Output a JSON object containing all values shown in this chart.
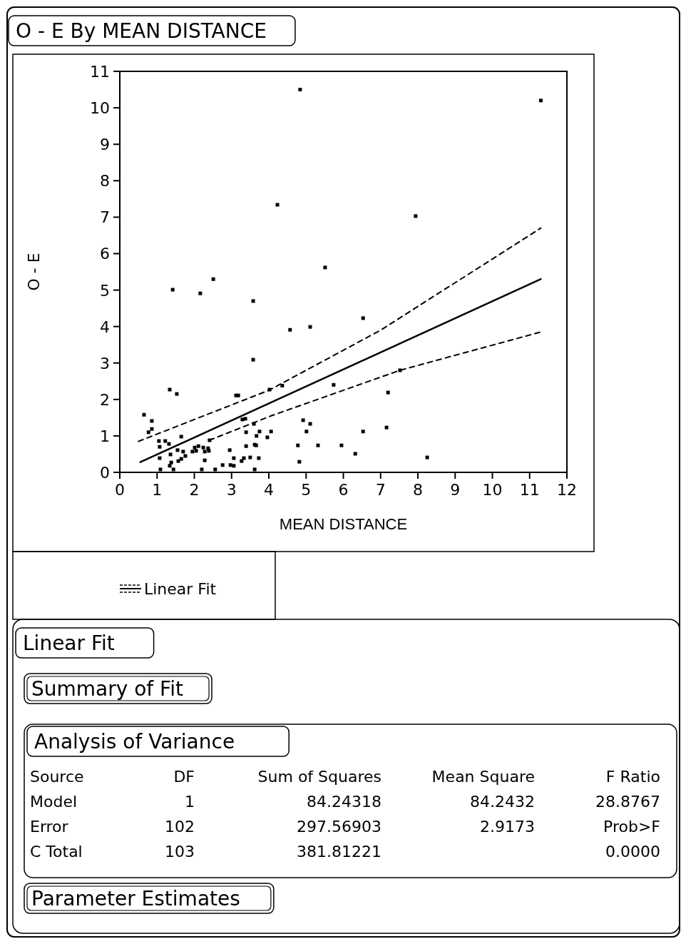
{
  "chart_data": [
    {
      "type": "scatter",
      "title": "O - E By MEAN DISTANCE",
      "xlabel": "MEAN DISTANCE",
      "ylabel": "O - E",
      "xlim": [
        0,
        12
      ],
      "ylim": [
        0,
        11
      ],
      "xticks": [
        0,
        1,
        2,
        3,
        4,
        5,
        6,
        7,
        8,
        9,
        10,
        11,
        12
      ],
      "yticks": [
        0,
        1,
        2,
        3,
        4,
        5,
        6,
        7,
        8,
        9,
        10,
        11
      ],
      "grid": false,
      "legend": "bottom",
      "series": [
        {
          "type": "scatter",
          "marker": "square",
          "color": "#000000",
          "x": [
            4.84,
            11.3,
            4.23,
            7.94,
            5.51,
            1.42,
            2.16,
            2.51,
            3.58,
            4.57,
            5.11,
            6.53,
            3.58,
            4.36,
            5.74,
            7.52,
            7.2,
            4.92,
            5.11,
            5.01,
            4.78,
            5.32,
            5.95,
            4.82,
            6.32,
            6.53,
            7.16,
            8.25,
            4.06,
            0.65,
            0.86,
            0.86,
            0.77,
            1.34,
            1.53,
            1.65,
            1.05,
            1.22,
            1.07,
            1.32,
            1.36,
            1.07,
            1.38,
            1.34,
            1.55,
            1.7,
            1.76,
            1.57,
            1.65,
            1.09,
            1.44,
            2.01,
            2.11,
            2.24,
            2.37,
            1.95,
            2.05,
            2.28,
            2.39,
            2.28,
            2.2,
            2.56,
            2.41,
            2.76,
            2.95,
            2.97,
            3.06,
            3.06,
            3.12,
            3.18,
            3.27,
            3.29,
            3.37,
            3.33,
            3.39,
            3.5,
            3.6,
            3.62,
            3.66,
            3.62,
            3.73,
            3.39,
            3.67,
            3.75,
            3.96,
            4.02
          ],
          "values": [
            10.5,
            10.2,
            7.34,
            7.03,
            5.62,
            5.01,
            4.91,
            5.3,
            4.7,
            3.91,
            3.99,
            4.23,
            3.09,
            2.38,
            2.4,
            2.8,
            2.19,
            1.43,
            1.33,
            1.12,
            0.74,
            0.74,
            0.74,
            0.29,
            0.51,
            1.12,
            1.23,
            0.41,
            1.12,
            1.58,
            1.41,
            1.19,
            1.1,
            2.27,
            2.15,
            0.98,
            0.86,
            0.86,
            0.7,
            0.78,
            0.49,
            0.39,
            0.27,
            0.18,
            0.61,
            0.57,
            0.45,
            0.31,
            0.37,
            0.08,
            0.08,
            0.68,
            0.72,
            0.68,
            0.66,
            0.57,
            0.59,
            0.57,
            0.59,
            0.33,
            0.08,
            0.08,
            0.88,
            0.2,
            0.61,
            0.2,
            0.39,
            0.18,
            2.11,
            2.11,
            0.31,
            1.45,
            1.47,
            0.39,
            0.72,
            0.41,
            1.33,
            0.76,
            0.74,
            0.08,
            0.39,
            1.1,
            1.0,
            1.12,
            0.96,
            2.27
          ]
        },
        {
          "type": "line",
          "name": "Linear Fit",
          "marker": "none",
          "color": "#000000",
          "line_style": "solid",
          "x": [
            0.55,
            11.3
          ],
          "values": [
            0.28,
            5.3
          ]
        },
        {
          "type": "line",
          "marker": "none",
          "color": "#000000",
          "line_style": "dashed",
          "x": [
            0.5,
            1.65,
            4,
            7,
            11.3
          ],
          "values": [
            0.85,
            1.31,
            2.25,
            3.9,
            6.7
          ]
        },
        {
          "type": "line",
          "marker": "none",
          "color": "#000000",
          "line_style": "dashed",
          "x": [
            2.4,
            4.06,
            7.52,
            11.3
          ],
          "values": [
            0.88,
            1.55,
            2.8,
            3.85
          ]
        }
      ]
    },
    {
      "type": "other",
      "title": "Linear Fit",
      "annotations": [
        "Summary of Fit",
        "Analysis of Variance",
        "Source",
        "DF",
        "Sum of Squares",
        "Mean Square",
        "F Ratio",
        "Model",
        "1",
        "84.24318",
        "84.2432",
        "28.8767",
        "Error",
        "102",
        "297.56903",
        "2.9173",
        "Prob>F",
        "C Total",
        "103",
        "381.81221",
        null,
        "0.0000",
        "Parameter Estimates"
      ]
    }
  ]
}
